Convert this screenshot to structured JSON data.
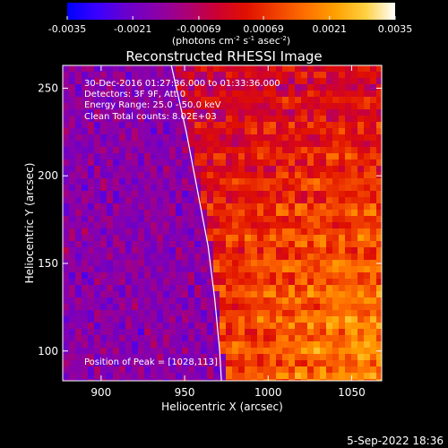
{
  "chart_data": {
    "type": "heatmap",
    "title": "Reconstructed RHESSI Image",
    "colorbar": {
      "ticks": [
        "-0.0035",
        "-0.0021",
        "-0.00069",
        "0.00069",
        "0.0021",
        "0.0035"
      ],
      "range": [
        -0.0035,
        0.0035
      ],
      "unit_prefix": "(photons cm",
      "unit_exp1": "-2",
      "unit_mid": " s",
      "unit_exp2": "-1",
      "unit_mid2": " asec",
      "unit_exp3": "-2",
      "unit_suffix": ")",
      "colormap": [
        "#0000ff",
        "#3a00ff",
        "#6a00cc",
        "#8a00aa",
        "#aa0077",
        "#cc0033",
        "#e01000",
        "#f04000",
        "#ff7000",
        "#ffa000",
        "#ffd040",
        "#ffffff"
      ]
    },
    "xlabel": "Heliocentric X (arcsec)",
    "ylabel": "Heliocentric Y (arcsec)",
    "xlim": [
      877,
      1068
    ],
    "ylim": [
      83,
      263
    ],
    "xticks": [
      900,
      950,
      1000,
      1050
    ],
    "yticks": [
      100,
      150,
      200,
      250
    ],
    "annotations": [
      "30-Dec-2016 01:27:36.000 to 01:33:36.000",
      "Detectors: 3F 9F, Att 0",
      "Energy Range: 25.0 - 50.0 keV",
      "Clean    Total counts: 8.02E+03"
    ],
    "peak_label": "Position of Peak = [1028,113]",
    "peak": [
      1028,
      113
    ],
    "limb_curve": [
      [
        942,
        263
      ],
      [
        951,
        225
      ],
      [
        958,
        190
      ],
      [
        964,
        160
      ],
      [
        968,
        130
      ],
      [
        971,
        100
      ],
      [
        972,
        83
      ]
    ]
  },
  "footer": {
    "date": "5-Sep-2022 18:36"
  }
}
